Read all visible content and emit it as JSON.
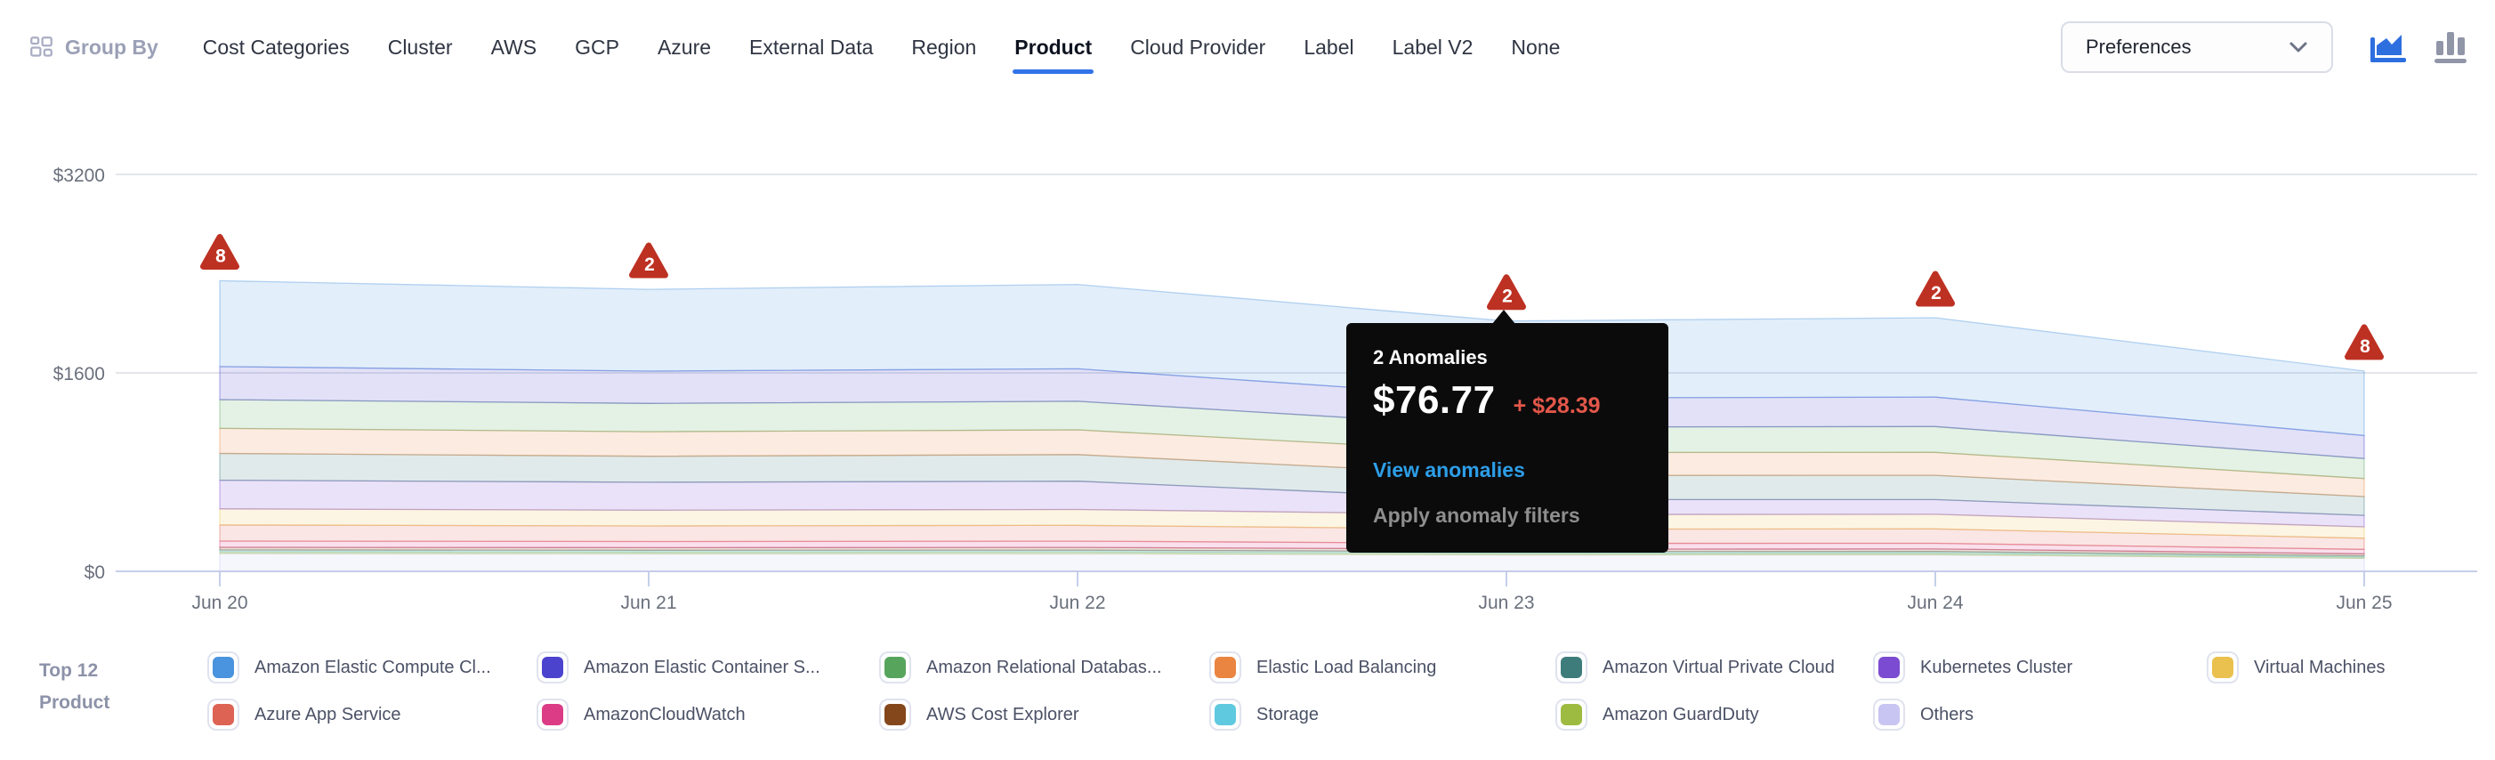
{
  "colors": {
    "accent_blue": "#3273E8",
    "anomaly_red": "#BD3123",
    "delta_red": "#E25749",
    "link_blue": "#2D9EE8",
    "active_chart_icon": "#2E6FE0",
    "inactive_chart_icon": "#9195A8"
  },
  "toolbar": {
    "group_by_label": "Group By",
    "tabs": [
      {
        "label": "Cost Categories",
        "active": false
      },
      {
        "label": "Cluster",
        "active": false
      },
      {
        "label": "AWS",
        "active": false
      },
      {
        "label": "GCP",
        "active": false
      },
      {
        "label": "Azure",
        "active": false
      },
      {
        "label": "External Data",
        "active": false
      },
      {
        "label": "Region",
        "active": false
      },
      {
        "label": "Product",
        "active": true
      },
      {
        "label": "Cloud Provider",
        "active": false
      },
      {
        "label": "Label",
        "active": false
      },
      {
        "label": "Label V2",
        "active": false
      },
      {
        "label": "None",
        "active": false
      }
    ],
    "preferences_label": "Preferences"
  },
  "tooltip": {
    "title": "2 Anomalies",
    "value": "$76.77",
    "delta": "+ $28.39",
    "link": "View anomalies",
    "secondary": "Apply anomaly filters"
  },
  "legend": {
    "title_line1": "Top 12",
    "title_line2": "Product",
    "items": [
      {
        "label": "Amazon Elastic Compute Cl...",
        "color": "#4A93DE"
      },
      {
        "label": "Azure App Service",
        "color": "#DD6355"
      },
      {
        "label": "Amazon Elastic Container S...",
        "color": "#4B42CE"
      },
      {
        "label": "AmazonCloudWatch",
        "color": "#DC3C86"
      },
      {
        "label": "Amazon Relational Databas...",
        "color": "#57A55C"
      },
      {
        "label": "AWS Cost Explorer",
        "color": "#84471C"
      },
      {
        "label": "Elastic Load Balancing",
        "color": "#EA8541"
      },
      {
        "label": "Storage",
        "color": "#5FC9DF"
      },
      {
        "label": "Amazon Virtual Private Cloud",
        "color": "#3E7C7C"
      },
      {
        "label": "Amazon GuardDuty",
        "color": "#9DBB41"
      },
      {
        "label": "Kubernetes Cluster",
        "color": "#7B4BD1"
      },
      {
        "label": "Others",
        "color": "#C8C5F2"
      },
      {
        "label": "Virtual Machines",
        "color": "#EAC04E"
      }
    ]
  },
  "chart_data": {
    "type": "area",
    "stacked": true,
    "x": [
      "Jun 20",
      "Jun 21",
      "Jun 22",
      "Jun 23",
      "Jun 24",
      "Jun 25"
    ],
    "y_ticks": [
      {
        "value": 0,
        "label": "$0"
      },
      {
        "value": 1600,
        "label": "$1600"
      },
      {
        "value": 3200,
        "label": "$3200"
      }
    ],
    "ylim": [
      0,
      3200
    ],
    "legend_position": "bottom",
    "series": [
      {
        "name": "Amazon Elastic Compute Cloud",
        "color": "#4A93DE",
        "values": [
          692,
          660,
          680,
          620,
          640,
          520
        ]
      },
      {
        "name": "Amazon Elastic Container Service",
        "color": "#4B42CE",
        "values": [
          267,
          260,
          262,
          235,
          238,
          185
        ]
      },
      {
        "name": "Amazon Relational Database Service",
        "color": "#57A55C",
        "values": [
          231,
          228,
          230,
          205,
          208,
          162
        ]
      },
      {
        "name": "Elastic Load Balancing",
        "color": "#EA8541",
        "values": [
          202,
          198,
          200,
          185,
          185,
          145
        ]
      },
      {
        "name": "Amazon Virtual Private Cloud",
        "color": "#3E7C7C",
        "values": [
          216,
          210,
          214,
          195,
          196,
          152
        ]
      },
      {
        "name": "Kubernetes Cluster",
        "color": "#7B4BD1",
        "values": [
          231,
          225,
          228,
          120,
          118,
          92
        ]
      },
      {
        "name": "Virtual Machines",
        "color": "#EAC04E",
        "values": [
          130,
          127,
          128,
          118,
          118,
          92
        ]
      },
      {
        "name": "Azure App Service",
        "color": "#DD6355",
        "values": [
          130,
          126,
          128,
          115,
          116,
          90
        ]
      },
      {
        "name": "AmazonCloudWatch",
        "color": "#DC3C86",
        "values": [
          50,
          49,
          50,
          46,
          46,
          36
        ]
      },
      {
        "name": "AWS Cost Explorer",
        "color": "#84471C",
        "values": [
          22,
          21,
          22,
          20,
          20,
          16
        ]
      },
      {
        "name": "Storage",
        "color": "#5FC9DF",
        "values": [
          14,
          14,
          14,
          13,
          13,
          10
        ]
      },
      {
        "name": "Amazon GuardDuty",
        "color": "#9DBB41",
        "values": [
          14,
          14,
          14,
          13,
          13,
          10
        ]
      },
      {
        "name": "Others",
        "color": "#C8C5F2",
        "values": [
          144,
          142,
          143,
          133,
          134,
          105
        ]
      }
    ],
    "anomalies": [
      {
        "x_index": 0,
        "count": "8"
      },
      {
        "x_index": 1,
        "count": "2"
      },
      {
        "x_index": 3,
        "count": "2"
      },
      {
        "x_index": 4,
        "count": "2"
      },
      {
        "x_index": 5,
        "count": "8"
      }
    ]
  }
}
